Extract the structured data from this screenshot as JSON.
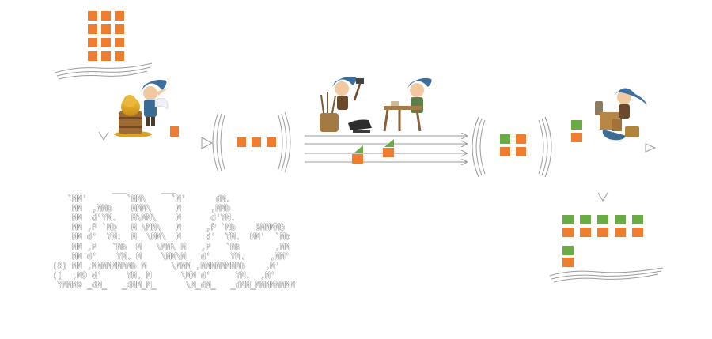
{
  "title": "JAN4S",
  "logo_ascii": "             ___       ___\n    `MM'        `MM\\     `M'      dM.\n     MM  ,MMb    MMM\\     M      ,MMb\n     MM  d'YM.   M\\MM\\    M      d'YM.\n     MM ,P `Mb   M \\MM\\   M     ,P `Mb    6MMMMb\n     MM d'  YM.  M  \\MM\\  M     d'  YM.  MM'  `Mb\n     MM ,P   `Mb  M   \\MM\\ M   ,P   `Mb       ,MM\n     MM d'    YM. M    \\MM\\M   d'    YM.     ,MM'\n (8) MM ,MMMMMMMMb M     \\MMM ,MMMMMMMMb    ,M'\n ((  ,M9 d'     YM. M      \\MM d'     YM.  ,M'\n  YMMM9 _dM_   _dMM_M_      \\M_dM_   _dMM_MMMMMMMM",
  "pipeline": {
    "stages": [
      {
        "id": "gather",
        "icon": "beehive-elf-icon",
        "output_blocks": 1
      },
      {
        "id": "tokenize",
        "icon": "blacksmith-elf-icon",
        "output_blocks": 3
      },
      {
        "id": "pack",
        "icon": "tailor-elf-icon",
        "output_blocks": 4
      }
    ],
    "lanes": 4,
    "input_stack": {
      "rows": 4,
      "cols": 3
    },
    "output_stack": {
      "top_rows": 2,
      "extra_rows": 2,
      "cols": 5
    }
  },
  "colors": {
    "orange": "#ee7d30",
    "green": "#6aab45",
    "line": "#9a9a9a",
    "background": "#ffffff"
  }
}
